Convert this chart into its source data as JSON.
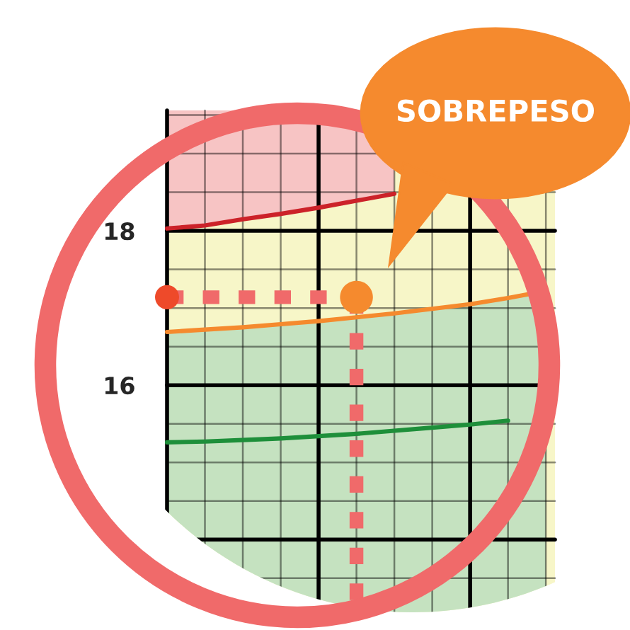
{
  "chart_data": {
    "type": "line",
    "annotations": [
      "SOBREPESO"
    ],
    "categories": [
      null,
      null,
      null,
      null,
      null,
      null,
      null,
      null,
      null,
      null,
      null
    ],
    "ylim": [
      12.92,
      19.56
    ],
    "yticks": [
      {
        "value": 13.5,
        "label": null
      },
      {
        "value": 14,
        "label": null
      },
      {
        "value": 14.5,
        "label": null
      },
      {
        "value": 15,
        "label": null
      },
      {
        "value": 15.5,
        "label": null
      },
      16,
      {
        "value": 16.5,
        "label": null
      },
      {
        "value": 17,
        "label": null
      },
      {
        "value": 17.5,
        "label": null
      },
      18,
      {
        "value": 18.5,
        "label": null
      },
      {
        "value": 19,
        "label": null
      },
      {
        "value": 19.5,
        "label": null
      }
    ],
    "tick_labels": "y",
    "grid": true,
    "series": [
      {
        "color": "#cc2229",
        "values": [
          18.03,
          18.07,
          18.15,
          18.22,
          18.3,
          18.39,
          18.48,
          null,
          null,
          null,
          null
        ]
      },
      {
        "color": "#f58a2e",
        "values": [
          16.69,
          16.72,
          16.75,
          16.79,
          16.83,
          16.88,
          16.93,
          16.99,
          17.05,
          17.13,
          17.22
        ]
      },
      {
        "color": "#1e8f3a",
        "values": [
          15.26,
          15.27,
          15.29,
          15.31,
          15.34,
          15.37,
          15.41,
          15.45,
          15.49,
          15.54,
          null
        ]
      },
      {
        "color": "#f06a6a",
        "line_style": "dotted",
        "values": [
          17.14,
          17.14,
          17.14,
          17.14,
          17.14,
          17.14,
          null,
          null,
          null,
          null,
          null
        ]
      },
      {
        "type": "scatter",
        "color": "#ee4a2a",
        "values": [
          17.14,
          null,
          null,
          null,
          null,
          null,
          null,
          null,
          null,
          null,
          null
        ]
      },
      {
        "type": "scatter",
        "color": "#f58a2e",
        "values": [
          null,
          null,
          null,
          null,
          null,
          17.14,
          null,
          null,
          null,
          null,
          null
        ]
      }
    ]
  }
}
